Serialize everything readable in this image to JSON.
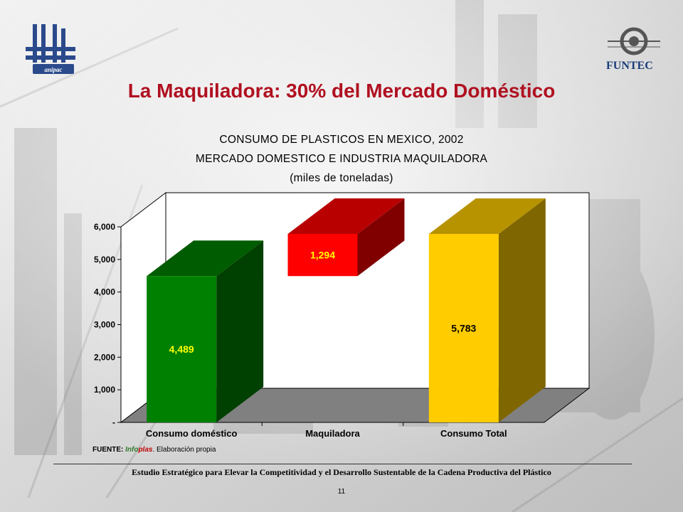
{
  "slide": {
    "title": "La Maquiladora: 30% del Mercado Doméstico",
    "logo_left_text": "anipac",
    "logo_right_text": "FUNTEC",
    "footer": "Estudio Estratégico para Elevar la Competitividad y el Desarrollo Sustentable de la Cadena Productiva del Plástico",
    "page_number": "11",
    "source": {
      "prefix": "FUENTE: ",
      "brand_a": "Info",
      "brand_b": "plas",
      "suffix": ". Elaboración propia"
    }
  },
  "chart_data": {
    "type": "bar",
    "subtype": "3d-waterfall",
    "title_lines": [
      "CONSUMO DE PLASTICOS  EN MEXICO, 2002",
      "MERCADO DOMESTICO E INDUSTRIA MAQUILADORA",
      "(miles de toneladas)"
    ],
    "categories": [
      "Consumo doméstico",
      "Maquiladora",
      "Consumo Total"
    ],
    "values": [
      4489,
      1294,
      5783
    ],
    "bar_bases": [
      0,
      4489,
      0
    ],
    "labels": [
      "4,489",
      "1,294",
      "5,783"
    ],
    "colors": [
      "#008000",
      "#ff0000",
      "#ffcc00"
    ],
    "label_colors": [
      "#ffff00",
      "#ffff00",
      "#000000"
    ],
    "ylim": [
      0,
      6000
    ],
    "yticks": [
      0,
      1000,
      2000,
      3000,
      4000,
      5000,
      6000
    ],
    "ytick_labels": [
      "-",
      "1,000",
      "2,000",
      "3,000",
      "4,000",
      "5,000",
      "6,000"
    ],
    "grid": false,
    "legend": "none"
  }
}
